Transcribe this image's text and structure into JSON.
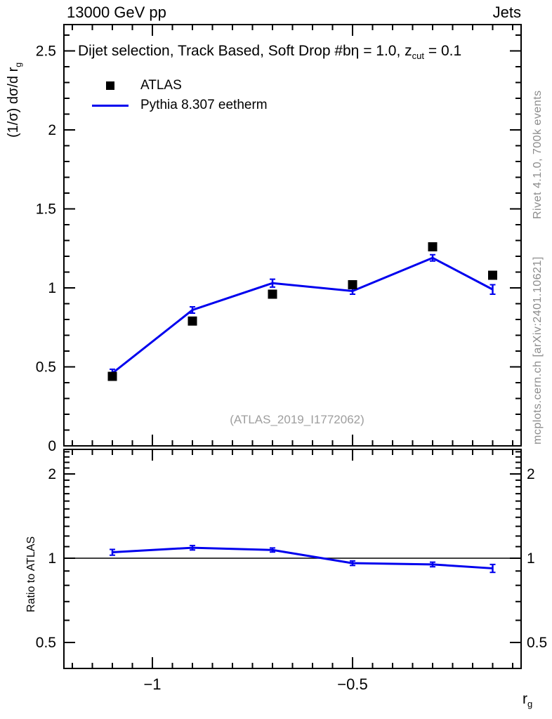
{
  "header": {
    "collision": "13000 GeV pp",
    "tag": "Jets"
  },
  "panel_title": {
    "text": "Dijet selection, Track Based, Soft Drop #bη = 1.0, z",
    "sub": "cut",
    "suffix": " = 0.1"
  },
  "legend": {
    "entries": [
      {
        "label": "ATLAS"
      },
      {
        "label": "Pythia 8.307 eetherm"
      }
    ]
  },
  "watermark": "(ATLAS_2019_I1772062)",
  "side_notes": {
    "top": "Rivet 4.1.0,  700k events",
    "bottom": "mcplots.cern.ch [arXiv:2401.10621]"
  },
  "axis_titles": {
    "y_main": "(1/σ) dσ/d r",
    "y_main_sub": "g",
    "ratio": "Ratio to ATLAS",
    "x": "r",
    "x_sub": "g"
  },
  "colors": {
    "pythia": "#0000ee",
    "atlas": "#000000",
    "frame": "#000000"
  },
  "chart_data": {
    "type": "line",
    "title": "Dijet selection, Track Based, Soft Drop #bη = 1.0, z_cut = 0.1",
    "xlabel": "r_g",
    "ylabel": "(1/σ) dσ/d r_g",
    "x": [
      -1.1,
      -0.9,
      -0.7,
      -0.5,
      -0.3,
      -0.15
    ],
    "series": [
      {
        "name": "ATLAS",
        "type": "scatter",
        "marker": "filled-square",
        "color": "#000000",
        "values": [
          0.44,
          0.79,
          0.96,
          1.02,
          1.26,
          1.08
        ]
      },
      {
        "name": "Pythia 8.307 eetherm",
        "type": "line",
        "color": "#0000ee",
        "values": [
          0.46,
          0.86,
          1.03,
          0.98,
          1.19,
          0.99
        ],
        "yerr": [
          0.025,
          0.02,
          0.025,
          0.02,
          0.02,
          0.03
        ]
      }
    ],
    "main_axis": {
      "ylim": [
        0,
        2.667
      ],
      "minor_step": 0.1,
      "ticks": [
        {
          "v": 0,
          "label": "0"
        },
        {
          "v": 0.5,
          "label": "0.5"
        },
        {
          "v": 1,
          "label": "1"
        },
        {
          "v": 1.5,
          "label": "1.5"
        },
        {
          "v": 2,
          "label": "2"
        },
        {
          "v": 2.5,
          "label": "2.5"
        }
      ]
    },
    "x_axis": {
      "xlim": [
        -1.221,
        -0.079
      ],
      "minor_step": 0.05,
      "ticks": [
        {
          "v": -1,
          "label": "−1"
        },
        {
          "v": -0.5,
          "label": "−0.5"
        }
      ]
    },
    "ratio_panel": {
      "name": "Ratio to ATLAS",
      "yscale": "log",
      "ylim": [
        0.404,
        2.45
      ],
      "reference_line": 1.0,
      "values": [
        1.05,
        1.09,
        1.07,
        0.96,
        0.95,
        0.92
      ],
      "yerr": [
        0.025,
        0.02,
        0.018,
        0.018,
        0.018,
        0.03
      ],
      "ticks": [
        {
          "v": 0.5,
          "label": "0.5"
        },
        {
          "v": 1,
          "label": "1"
        },
        {
          "v": 2,
          "label": "2"
        }
      ],
      "minor_ticks": [
        0.5,
        0.6,
        0.7,
        0.8,
        0.9,
        1.0,
        1.1,
        1.2,
        1.3,
        1.4,
        1.5,
        1.6,
        1.7,
        1.8,
        1.9,
        2.0,
        2.1,
        2.2,
        2.3,
        2.4
      ]
    }
  }
}
